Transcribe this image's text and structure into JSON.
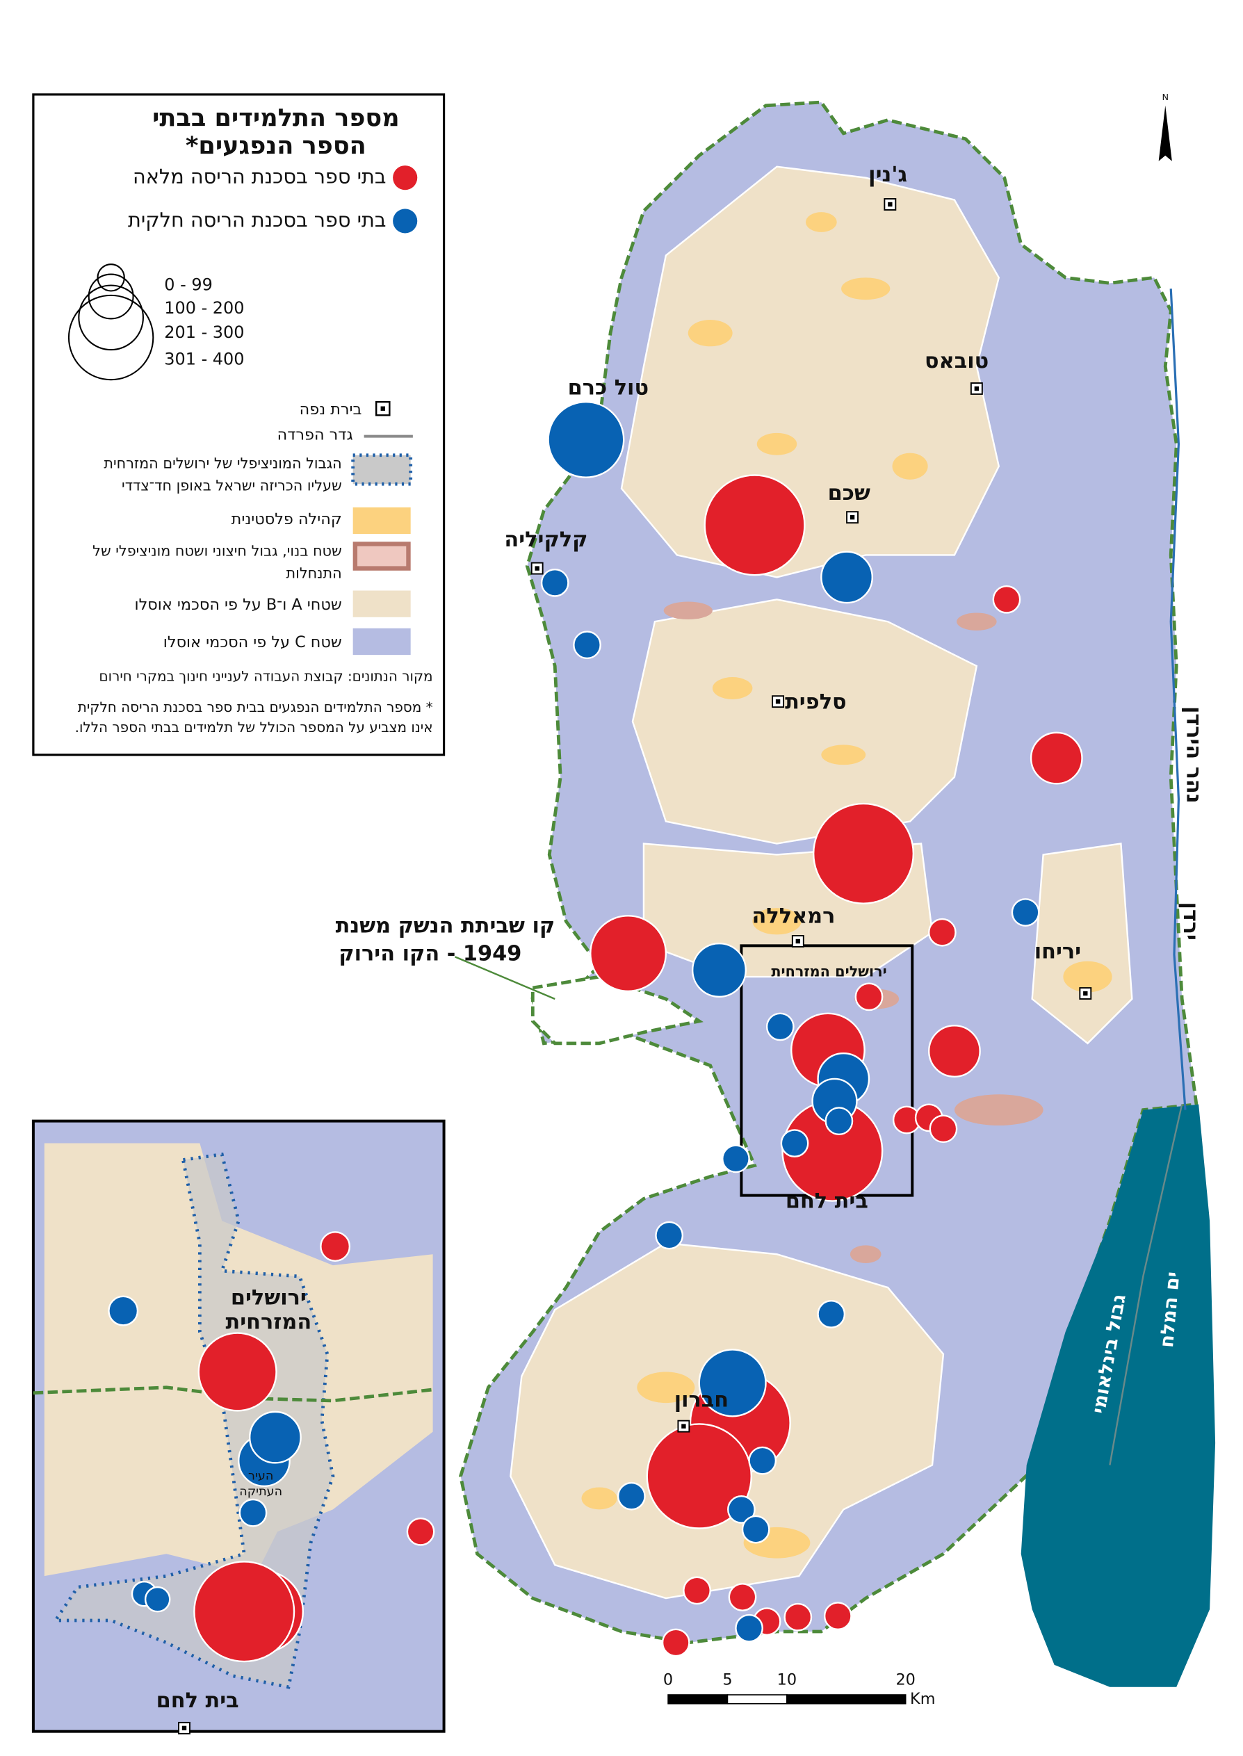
{
  "legend": {
    "title": [
      "מספר התלמידים בבתי",
      "הספר הנפגעים*"
    ],
    "full": "בתי ספר בסכנת הריסה מלאה",
    "partial": "בתי ספר בסכנת הריסה חלקית",
    "sizes": [
      "0 - 99",
      "100 - 200",
      "201 - 300",
      "301 - 400"
    ],
    "capital": "בירת נפה",
    "barrier": "גדר הפרדה",
    "municipal": [
      "הגבול המוניציפלי של ירושלים המזרחית",
      "שעליו הכריזה ישראל באופן חד־צדדי"
    ],
    "community": "קהילה פלסטינית",
    "settlement": [
      "שטח בנוי, גבול חיצוני ושטח מוניציפלי של",
      "התנחלות"
    ],
    "ab": "שטחי A ו־B על פי הסכמי אוסלו",
    "c": "שטח C על פי הסכמי אוסלו",
    "source": "מקור הנתונים: קבוצת העבודה לענייני חינוך במקרי חירום",
    "note": [
      "* מספר התלמידים הנפגעים בבית ספר בסכנת הריסה חלקית",
      "אינו מצביע על המספר הכולל של תלמידים בבתי הספר הללו."
    ]
  },
  "map_labels": {
    "jenin": "ג'נין",
    "tubas": "טובאס",
    "tulkarm": "טול כרם",
    "nablus": "שכם",
    "qalqilya": "קלקיליה",
    "salfit": "סלפית",
    "ramallah": "רמאללה",
    "jericho": "יריחו",
    "east_jerusalem": "ירושלים המזרחית",
    "bethlehem": "בית לחם",
    "hebron": "חברון",
    "jordan_river": "נהר הירדן",
    "jordan": "ירדן",
    "border": "גבול בינלאומי",
    "dead_sea": "ים המלח",
    "green_line": [
      "קו שביתת הנשק משנת",
      "1949 - הקו הירוק"
    ]
  },
  "inset_labels": {
    "east_jerusalem": [
      "ירושלים",
      "המזרחית"
    ],
    "old_city": [
      "העיר",
      "העתיקה"
    ],
    "bethlehem": "בית לחם"
  },
  "scale": {
    "ticks": [
      0,
      5,
      10,
      20
    ],
    "unit": "Km"
  },
  "north": "N"
}
